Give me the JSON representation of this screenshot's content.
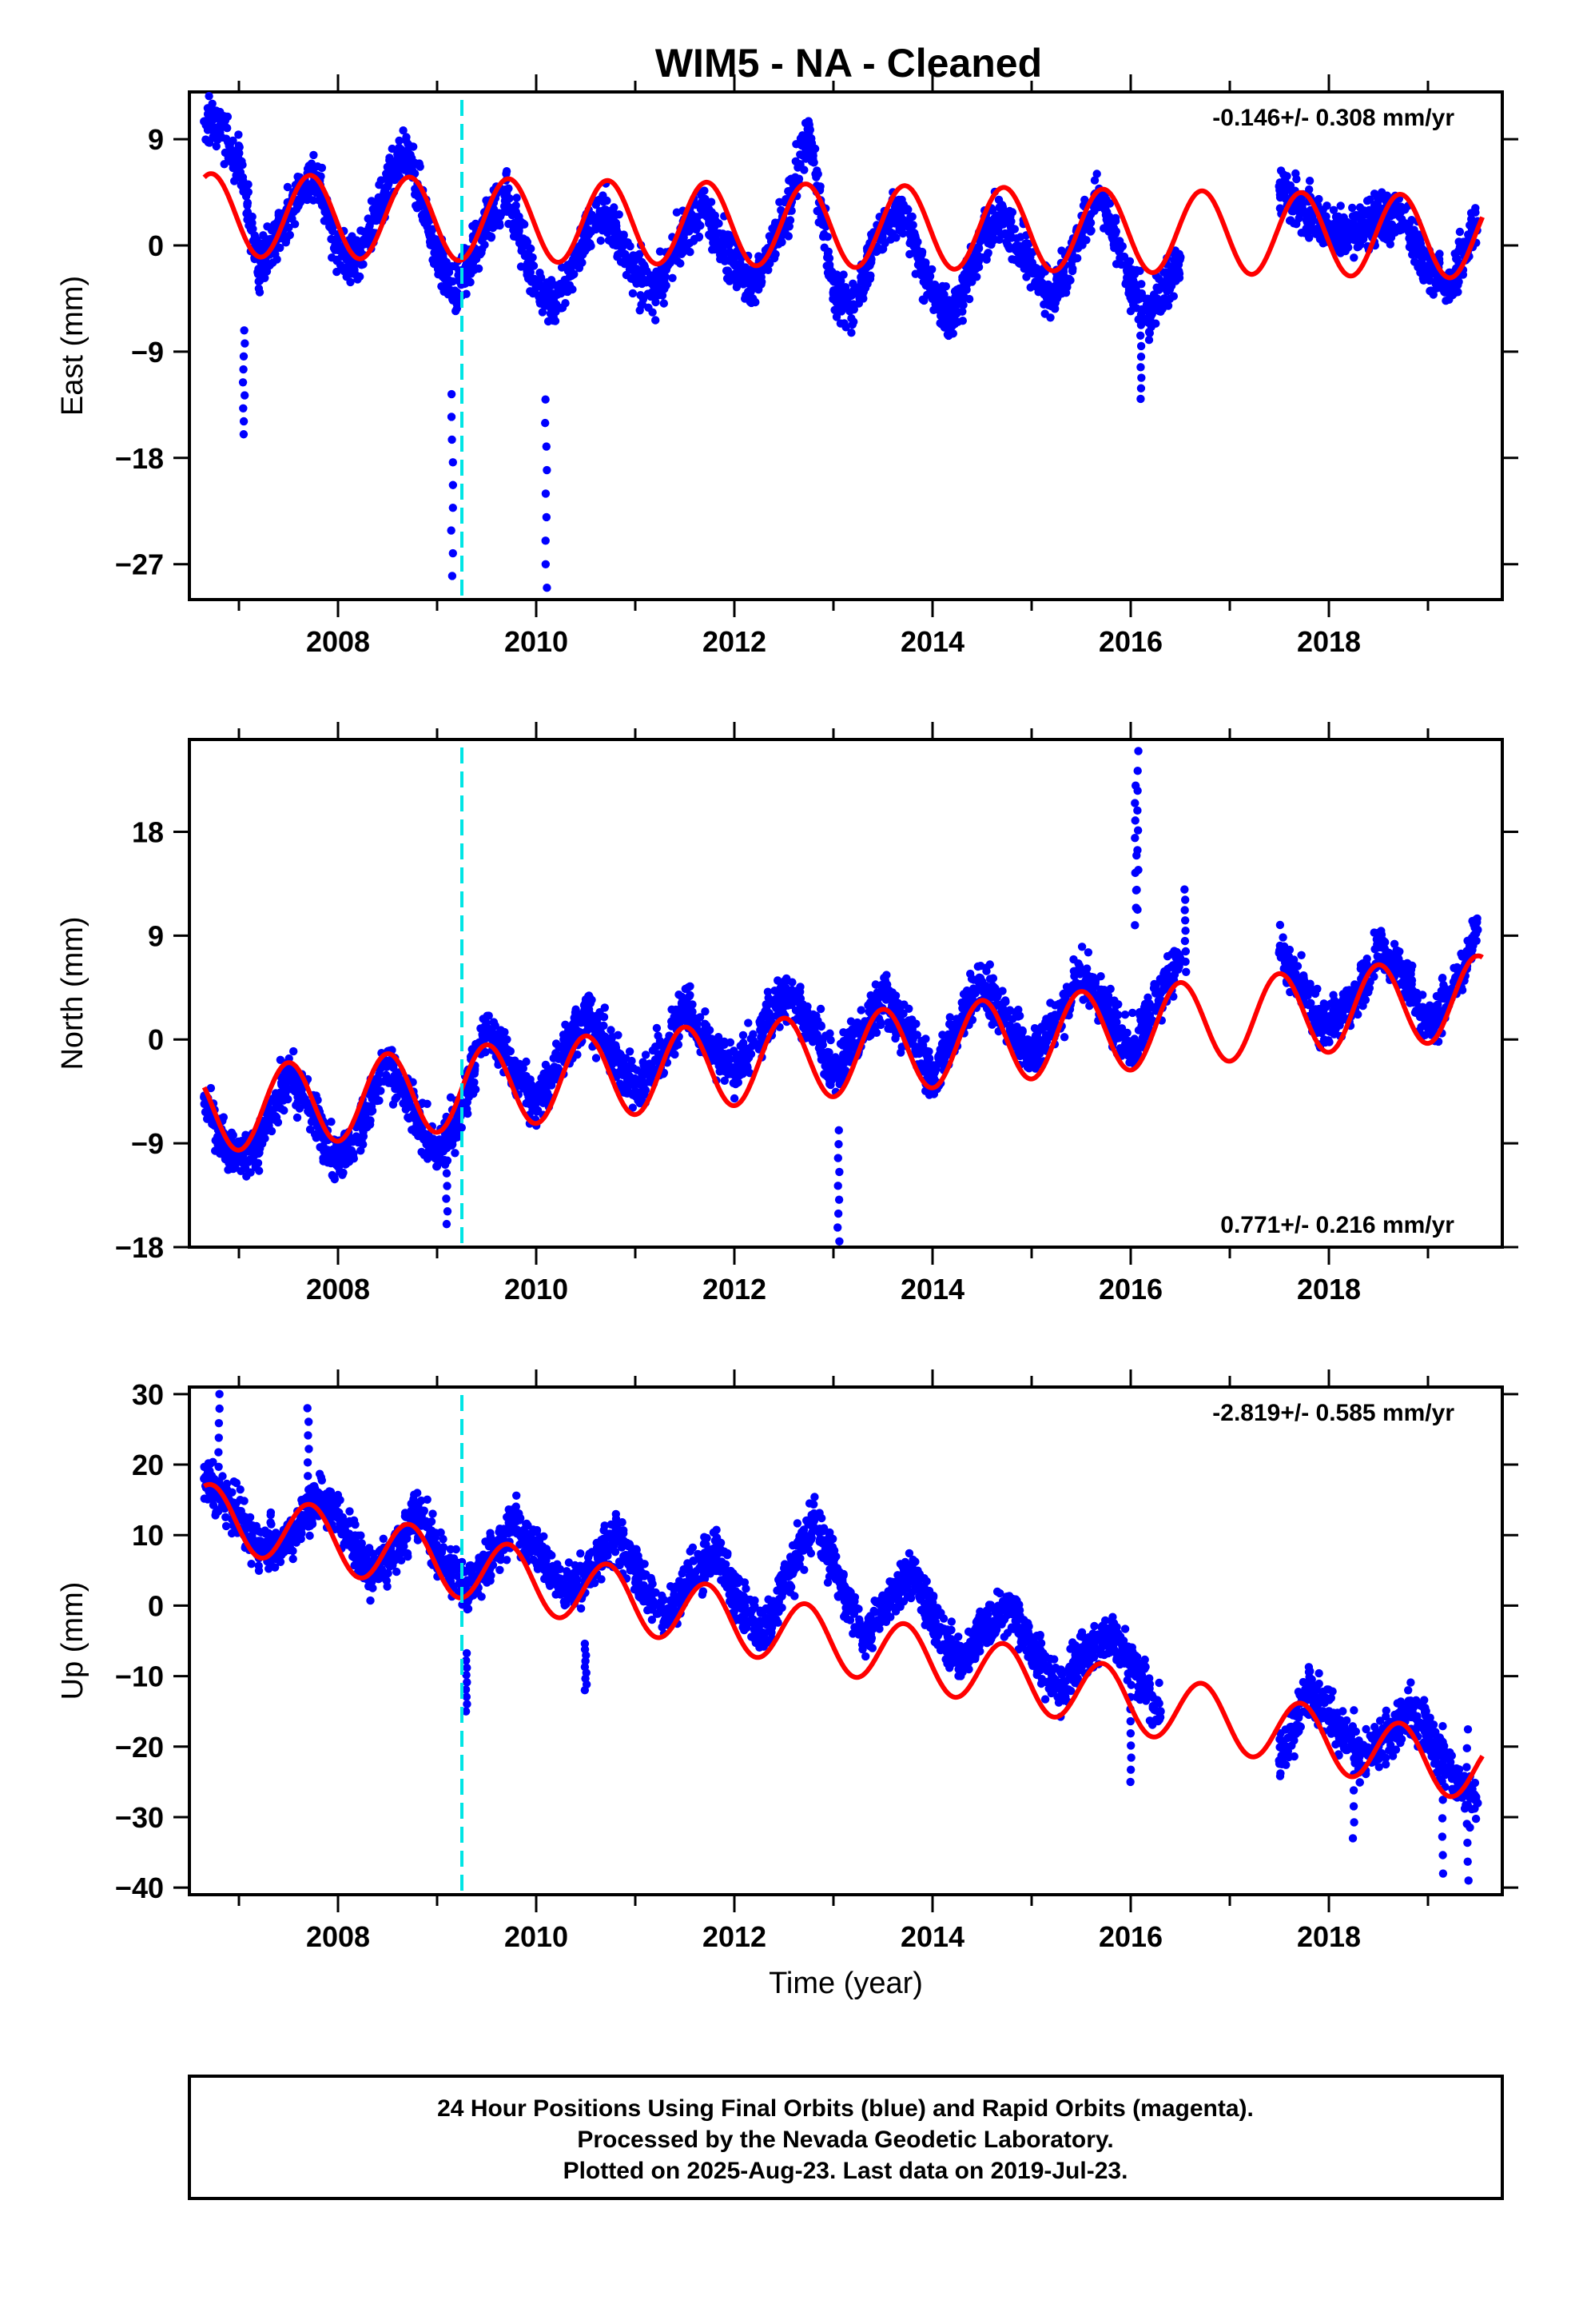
{
  "title": "WIM5  - NA - Cleaned",
  "colors": {
    "data": "#0000ff",
    "model": "#ff0000",
    "event": "#00e5e5",
    "frame": "#000000"
  },
  "chart_data": [
    {
      "type": "scatter",
      "ylabel": "East (mm)",
      "xlabel": "",
      "xlim": [
        2006.5,
        2019.75
      ],
      "ylim": [
        -30,
        13
      ],
      "yticks": [
        "9",
        "0",
        "-9",
        "-18",
        "-27"
      ],
      "ytick_values": [
        9,
        0,
        -9,
        -18,
        -27
      ],
      "xticks": [
        "2008",
        "2010",
        "2012",
        "2014",
        "2016",
        "2018"
      ],
      "xtick_values": [
        2008,
        2010,
        2012,
        2014,
        2016,
        2018
      ],
      "rate": "-0.146+/- 0.308 mm/yr",
      "rate_position": "top-right",
      "event_line_x": 2009.25,
      "model": {
        "offset": 2.6,
        "rate": -0.146,
        "amplitude": 3.5,
        "peak_phase": 0.72,
        "ref_year": 2006.6
      },
      "series": [
        {
          "x": [
            2006.65,
            2006.8,
            2007.0,
            2007.2,
            2007.5,
            2007.75,
            2008.0,
            2008.2,
            2008.5,
            2008.7,
            2009.0,
            2009.2,
            2009.5,
            2009.7,
            2010.0,
            2010.2,
            2010.5,
            2010.7,
            2011.0,
            2011.2,
            2011.5,
            2011.7,
            2012.0,
            2012.2,
            2012.5,
            2012.75,
            2013.0,
            2013.2,
            2013.5,
            2013.7,
            2014.0,
            2014.2,
            2014.5,
            2014.7,
            2015.0,
            2015.2,
            2015.5,
            2015.7,
            2016.0,
            2016.2,
            2016.5,
            2017.5,
            2017.7,
            2018.0,
            2018.2,
            2018.5,
            2018.7,
            2019.0,
            2019.2,
            2019.5
          ],
          "y": [
            10.5,
            10.0,
            7.0,
            -2.0,
            3.0,
            6.0,
            0.0,
            -1.5,
            5.0,
            8.0,
            -1.0,
            -4.0,
            2.0,
            4.5,
            -3.5,
            -5.0,
            1.0,
            3.0,
            -2.5,
            -4.0,
            1.5,
            3.0,
            -1.5,
            -3.5,
            2.0,
            9.5,
            -4.0,
            -5.0,
            1.5,
            3.0,
            -4.5,
            -6.0,
            0.5,
            2.5,
            -2.0,
            -4.5,
            1.0,
            4.5,
            -3.5,
            -6.0,
            -1.0,
            5.0,
            3.0,
            1.5,
            1.0,
            2.5,
            3.0,
            -2.0,
            -3.5,
            2.0
          ]
        }
      ],
      "outliers": [
        {
          "x": [
            2007.05,
            2009.15,
            2010.1,
            2016.1
          ],
          "y": [
            -16,
            -28,
            -29,
            -13
          ]
        }
      ]
    },
    {
      "type": "scatter",
      "ylabel": "North (mm)",
      "xlabel": "",
      "xlim": [
        2006.5,
        2019.75
      ],
      "ylim": [
        -18,
        26
      ],
      "yticks": [
        "18",
        "9",
        "0",
        "-9",
        "-18"
      ],
      "ytick_values": [
        18,
        9,
        0,
        -9,
        -18
      ],
      "xticks": [
        "2008",
        "2010",
        "2012",
        "2014",
        "2016",
        "2018"
      ],
      "xtick_values": [
        2008,
        2010,
        2012,
        2014,
        2016,
        2018
      ],
      "rate": "0.771+/- 0.216 mm/yr",
      "rate_position": "bottom-right",
      "event_line_x": 2009.25,
      "model": {
        "offset": -6.3,
        "rate": 0.771,
        "amplitude": 3.6,
        "peak_phase": 0.5,
        "ref_year": 2006.6
      },
      "series": [
        {
          "x": [
            2006.65,
            2006.9,
            2007.2,
            2007.5,
            2007.8,
            2008.0,
            2008.3,
            2008.5,
            2008.8,
            2009.0,
            2009.2,
            2009.5,
            2009.8,
            2010.0,
            2010.3,
            2010.5,
            2010.8,
            2011.0,
            2011.3,
            2011.5,
            2011.8,
            2012.0,
            2012.3,
            2012.5,
            2012.8,
            2013.0,
            2013.3,
            2013.5,
            2013.8,
            2014.0,
            2014.3,
            2014.5,
            2014.8,
            2015.0,
            2015.3,
            2015.5,
            2015.8,
            2016.0,
            2016.3,
            2016.5,
            2017.5,
            2017.8,
            2018.0,
            2018.3,
            2018.5,
            2018.8,
            2019.0,
            2019.3,
            2019.5
          ],
          "y": [
            -5.0,
            -10.0,
            -9.0,
            -3.0,
            -7.0,
            -11.0,
            -6.0,
            -2.0,
            -7.0,
            -10.0,
            -7.0,
            1.0,
            -3.0,
            -5.5,
            -1.0,
            2.5,
            -1.5,
            -4.5,
            -1.0,
            3.0,
            -1.0,
            -3.0,
            1.0,
            4.0,
            1.0,
            -3.0,
            1.0,
            4.0,
            0.0,
            -3.5,
            2.0,
            5.0,
            1.0,
            -1.5,
            2.5,
            6.0,
            2.0,
            -1.0,
            4.0,
            7.0,
            7.5,
            3.0,
            1.0,
            4.0,
            8.0,
            5.0,
            1.0,
            5.0,
            9.5
          ]
        }
      ],
      "outliers": [
        {
          "x": [
            2009.1,
            2013.05,
            2016.05,
            2016.07,
            2016.55
          ],
          "y": [
            -16,
            -17.5,
            22,
            25,
            13
          ]
        }
      ]
    },
    {
      "type": "scatter",
      "ylabel": "Up (mm)",
      "xlabel": "Time (year)",
      "xlim": [
        2006.5,
        2019.75
      ],
      "ylim": [
        -41,
        31
      ],
      "yticks": [
        "30",
        "20",
        "10",
        "0",
        "-10",
        "-20",
        "-30",
        "-40"
      ],
      "ytick_values": [
        30,
        20,
        10,
        0,
        -10,
        -20,
        -30,
        -40
      ],
      "xticks": [
        "2008",
        "2010",
        "2012",
        "2014",
        "2016",
        "2018"
      ],
      "xtick_values": [
        2008,
        2010,
        2012,
        2014,
        2016,
        2018
      ],
      "rate": "-2.819+/- 0.585 mm/yr",
      "rate_position": "top-right",
      "event_line_x": 2009.25,
      "model": {
        "offset": 13.0,
        "rate": -2.819,
        "amplitude": 4.5,
        "peak_phase": 0.72,
        "ref_year": 2006.6
      },
      "series": [
        {
          "x": [
            2006.65,
            2006.9,
            2007.2,
            2007.5,
            2007.8,
            2008.0,
            2008.3,
            2008.5,
            2008.8,
            2009.0,
            2009.3,
            2009.5,
            2009.8,
            2010.0,
            2010.3,
            2010.5,
            2010.8,
            2011.0,
            2011.3,
            2011.5,
            2011.8,
            2012.0,
            2012.3,
            2012.5,
            2012.8,
            2013.0,
            2013.3,
            2013.5,
            2013.8,
            2014.0,
            2014.3,
            2014.5,
            2014.8,
            2015.0,
            2015.3,
            2015.5,
            2015.8,
            2016.0,
            2016.3,
            2017.5,
            2017.8,
            2018.0,
            2018.3,
            2018.5,
            2018.8,
            2019.0,
            2019.3,
            2019.5
          ],
          "y": [
            18.0,
            15.0,
            8.0,
            9.0,
            16.0,
            13.0,
            5.0,
            6.0,
            13.0,
            8.0,
            2.0,
            6.0,
            12.0,
            8.0,
            2.0,
            4.0,
            10.0,
            5.0,
            -2.0,
            3.0,
            8.0,
            2.0,
            -4.0,
            3.0,
            12.0,
            6.0,
            -5.0,
            0.0,
            5.0,
            -2.0,
            -8.0,
            -3.0,
            0.0,
            -6.0,
            -12.0,
            -7.0,
            -4.0,
            -8.0,
            -15.0,
            -22.0,
            -12.0,
            -15.0,
            -22.0,
            -20.0,
            -15.0,
            -18.0,
            -25.0,
            -28.0
          ]
        }
      ],
      "outliers": [
        {
          "x": [
            2006.8,
            2007.7,
            2009.3,
            2010.5,
            2016.0,
            2018.25,
            2019.15,
            2019.4
          ],
          "y": [
            30,
            28,
            -15,
            -12,
            -25,
            -33,
            -38,
            -39
          ]
        }
      ]
    }
  ],
  "footer": {
    "line1": "24 Hour Positions Using Final Orbits (blue) and Rapid Orbits (magenta).",
    "line2": "Processed by the Nevada Geodetic Laboratory.",
    "line3": "Plotted on 2025-Aug-23. Last data on 2019-Jul-23."
  }
}
